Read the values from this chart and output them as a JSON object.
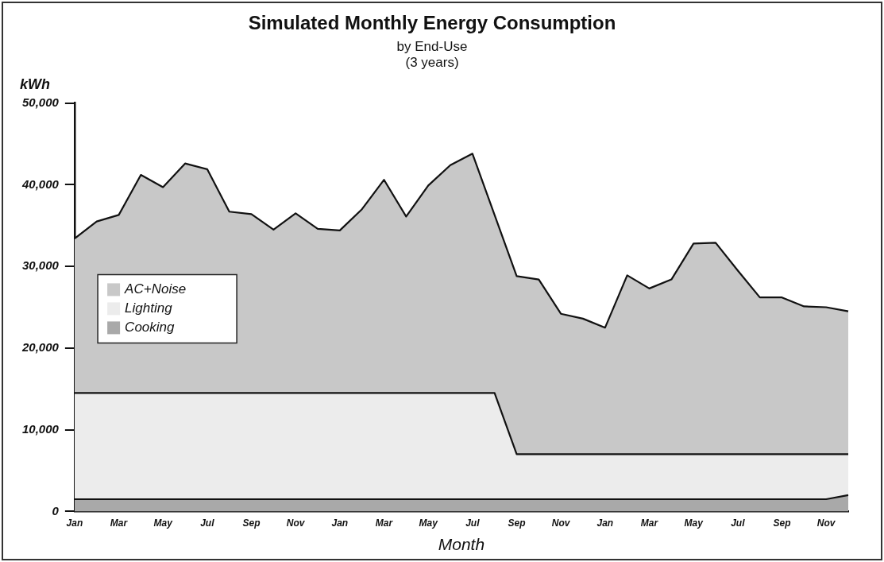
{
  "chart_data": {
    "type": "area",
    "title": "Simulated Monthly Energy Consumption",
    "subtitle": "by End-Use\n(3 years)",
    "xlabel": "Month",
    "ylabel": "kWh",
    "categories": [
      "Jan",
      null,
      "Mar",
      null,
      "May",
      null,
      "Jul",
      null,
      "Sep",
      null,
      "Nov",
      null,
      "Jan",
      null,
      "Mar",
      null,
      "May",
      null,
      "Jul",
      null,
      "Sep",
      null,
      "Nov",
      null,
      "Jan",
      null,
      "Mar",
      null,
      "May",
      null,
      "Jul",
      null,
      "Sep",
      null,
      "Nov",
      null
    ],
    "stacked": true,
    "series": [
      {
        "name": "Cooking",
        "color": "#a9a9a9",
        "values": [
          1500,
          1500,
          1500,
          1500,
          1500,
          1500,
          1500,
          1500,
          1500,
          1500,
          1500,
          1500,
          1500,
          1500,
          1500,
          1500,
          1500,
          1500,
          1500,
          1500,
          1500,
          1500,
          1500,
          1500,
          1500,
          1500,
          1500,
          1500,
          1500,
          1500,
          1500,
          1500,
          1500,
          1500,
          1500,
          2000
        ]
      },
      {
        "name": "Lighting",
        "color": "#ececec",
        "values": [
          13000,
          13000,
          13000,
          13000,
          13000,
          13000,
          13000,
          13000,
          13000,
          13000,
          13000,
          13000,
          13000,
          13000,
          13000,
          13000,
          13000,
          13000,
          13000,
          13000,
          5500,
          5500,
          5500,
          5500,
          5500,
          5500,
          5500,
          5500,
          5500,
          5500,
          5500,
          5500,
          5500,
          5500,
          5500,
          5000
        ]
      },
      {
        "name": "AC+Noise",
        "color": "#c8c8c8",
        "values": [
          18900,
          21000,
          21800,
          26700,
          25200,
          28100,
          27400,
          22200,
          21900,
          20000,
          22000,
          20100,
          19900,
          22500,
          26100,
          21600,
          25400,
          27900,
          29300,
          21800,
          21800,
          21400,
          17200,
          16600,
          15500,
          21900,
          20300,
          21400,
          25800,
          25900,
          22500,
          19200,
          19200,
          18100,
          18000,
          17500
        ]
      }
    ],
    "ylim": [
      0,
      50000
    ],
    "yticks": [
      0,
      {
        "value": 10000,
        "label": "10,000"
      },
      {
        "value": 20000,
        "label": "20,000"
      },
      {
        "value": 30000,
        "label": "30,000"
      },
      {
        "value": 40000,
        "label": "40,000"
      },
      {
        "value": 50000,
        "label": "50,000"
      }
    ],
    "grid": false,
    "legend": "left",
    "marker": "none",
    "line_style": "solid"
  }
}
